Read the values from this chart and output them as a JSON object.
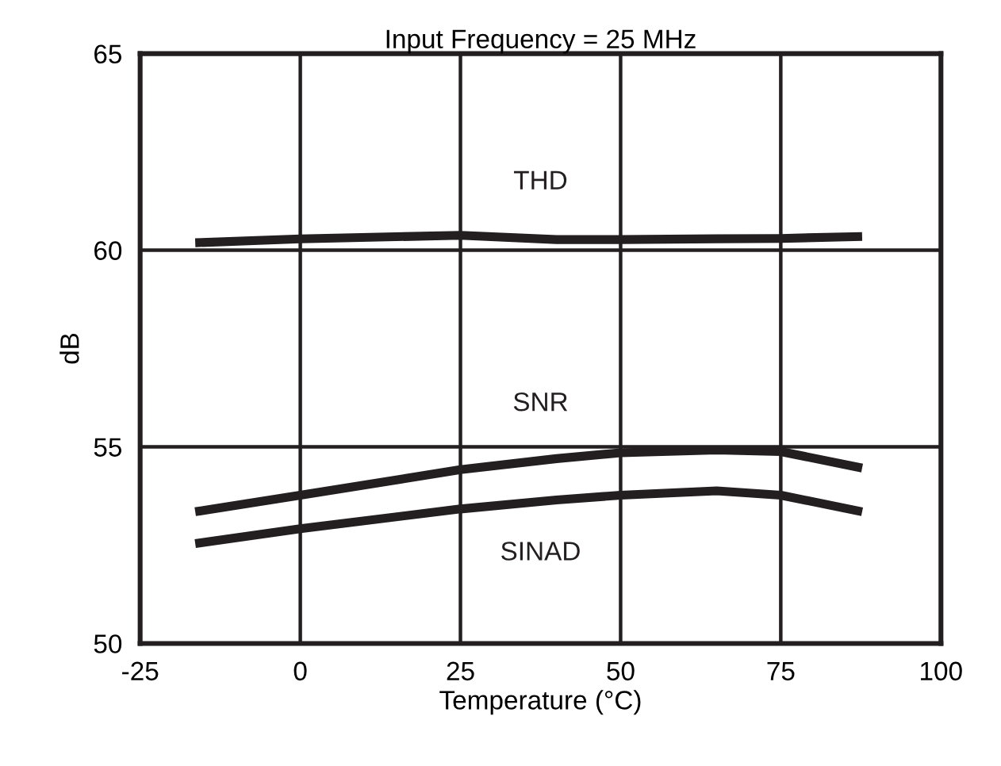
{
  "chart_data": {
    "type": "line",
    "title": "Input Frequency = 25 MHz",
    "xlabel": "Temperature (°C)",
    "ylabel": "dB",
    "x": [
      -16.4,
      0,
      25,
      40,
      50,
      65,
      75,
      87.7
    ],
    "series": [
      {
        "name": "THD",
        "color": "#231f20",
        "values": [
          60.19,
          60.29,
          60.38,
          60.27,
          60.27,
          60.29,
          60.3,
          60.35
        ]
      },
      {
        "name": "SNR",
        "color": "#231f20",
        "values": [
          53.35,
          53.77,
          54.42,
          54.7,
          54.85,
          54.92,
          54.88,
          54.46
        ]
      },
      {
        "name": "SINAD",
        "color": "#231f20",
        "values": [
          52.54,
          52.92,
          53.42,
          53.65,
          53.77,
          53.88,
          53.77,
          53.35
        ]
      }
    ],
    "xlim": [
      -25,
      100
    ],
    "xticks": [
      -25,
      0,
      25,
      50,
      75,
      100
    ],
    "ylim": [
      50,
      65
    ],
    "yticks": [
      50,
      55,
      60,
      65
    ],
    "grid": true,
    "legend": false,
    "marker": "none",
    "line_style": "solid"
  }
}
